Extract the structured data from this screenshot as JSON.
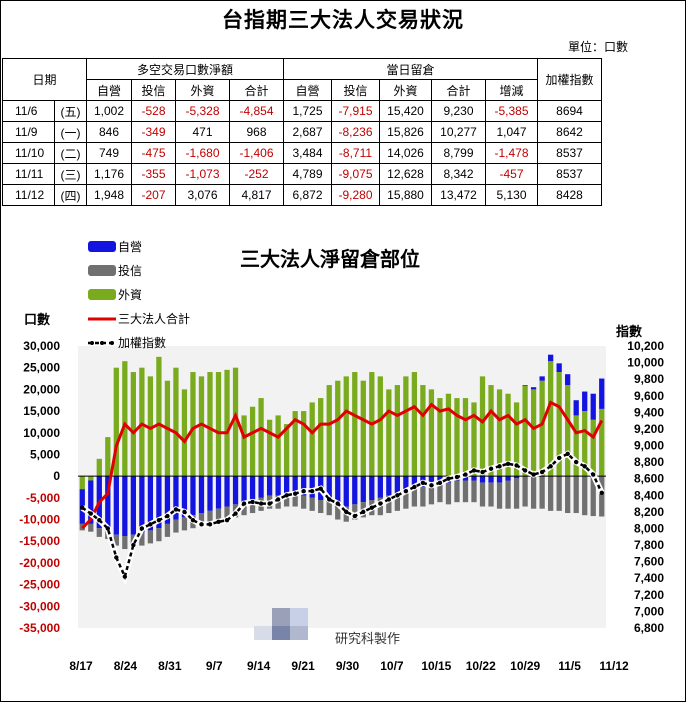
{
  "title": "台指期三大法人交易狀況",
  "unit": "單位：口數",
  "table": {
    "date_header": "日期",
    "group1": "多空交易口數淨額",
    "group2": "當日留倉",
    "last_header": "加權指數",
    "sub1": [
      "自營",
      "投信",
      "外資",
      "合計"
    ],
    "sub2": [
      "自營",
      "投信",
      "外資",
      "合計",
      "增減"
    ],
    "rows": [
      {
        "date": "11/6",
        "dow": "(五)",
        "c": [
          "1,002",
          "-528",
          "-5,328",
          "-4,854",
          "1,725",
          "-7,915",
          "15,420",
          "9,230",
          "-5,385",
          "8694"
        ]
      },
      {
        "date": "11/9",
        "dow": "(一)",
        "c": [
          "846",
          "-349",
          "471",
          "968",
          "2,687",
          "-8,236",
          "15,826",
          "10,277",
          "1,047",
          "8642"
        ]
      },
      {
        "date": "11/10",
        "dow": "(二)",
        "c": [
          "749",
          "-475",
          "-1,680",
          "-1,406",
          "3,484",
          "-8,711",
          "14,026",
          "8,799",
          "-1,478",
          "8537"
        ]
      },
      {
        "date": "11/11",
        "dow": "(三)",
        "c": [
          "1,176",
          "-355",
          "-1,073",
          "-252",
          "4,789",
          "-9,075",
          "12,628",
          "8,342",
          "-457",
          "8537"
        ]
      },
      {
        "date": "11/12",
        "dow": "(四)",
        "c": [
          "1,948",
          "-207",
          "3,076",
          "4,817",
          "6,872",
          "-9,280",
          "15,880",
          "13,472",
          "5,130",
          "8428"
        ]
      }
    ]
  },
  "watermark": "研究科製作",
  "colors": {
    "dealer": "#1414e0",
    "trust": "#707070",
    "foreign": "#7aab1f",
    "total": "#e00000",
    "index": "#000000",
    "neg_text": "#c00000"
  },
  "chart_data": {
    "type": "bar",
    "title": "三大法人淨留倉部位",
    "ylabel": "口數",
    "y2label": "指數",
    "ylim": [
      -35000,
      30000
    ],
    "y2lim": [
      6800,
      10200
    ],
    "yticks": [
      "30,000",
      "25,000",
      "20,000",
      "15,000",
      "10,000",
      "5,000",
      "0",
      "-5,000",
      "-10,000",
      "-15,000",
      "-20,000",
      "-25,000",
      "-30,000",
      "-35,000"
    ],
    "y2ticks": [
      "10,200",
      "10,000",
      "9,800",
      "9,600",
      "9,400",
      "9,200",
      "9,000",
      "8,800",
      "8,600",
      "8,400",
      "8,200",
      "8,000",
      "7,800",
      "7,600",
      "7,400",
      "7,200",
      "7,000",
      "6,800"
    ],
    "xticks": [
      "8/17",
      "8/24",
      "8/31",
      "9/7",
      "9/14",
      "9/21",
      "9/30",
      "10/7",
      "10/15",
      "10/22",
      "10/29",
      "11/5",
      "11/12"
    ],
    "legend": [
      "自營",
      "投信",
      "外資",
      "三大法人合計",
      "加權指數"
    ],
    "series": [
      {
        "name": "自營",
        "values": [
          -8000,
          -10000,
          -12000,
          -12000,
          -13500,
          -13800,
          -13500,
          -13000,
          -12500,
          -12000,
          -11000,
          -10000,
          -9500,
          -9000,
          -8500,
          -8000,
          -7500,
          -7000,
          -6500,
          -6000,
          -5500,
          -5000,
          -4500,
          -4500,
          -4000,
          -4000,
          -4500,
          -5000,
          -5500,
          -6000,
          -6500,
          -7000,
          -6500,
          -6000,
          -5500,
          -5000,
          -4500,
          -4000,
          -3500,
          -3000,
          -2500,
          -2000,
          -1500,
          -1500,
          -1000,
          -1000,
          -1000,
          -1500,
          -1500,
          -1500,
          -1000,
          -500,
          0,
          500,
          1000,
          1500,
          2000,
          2500,
          3500,
          4500,
          6000,
          7000
        ]
      },
      {
        "name": "投信",
        "values": [
          -1500,
          -1800,
          -2000,
          -2500,
          -2500,
          -3000,
          -3000,
          -3000,
          -3000,
          -3000,
          -3000,
          -3000,
          -3000,
          -3000,
          -3000,
          -3000,
          -3000,
          -3000,
          -3000,
          -3000,
          -3000,
          -3000,
          -3000,
          -3000,
          -3000,
          -3000,
          -3000,
          -3000,
          -3000,
          -3000,
          -3500,
          -3500,
          -3500,
          -3500,
          -3500,
          -4000,
          -4000,
          -4000,
          -4000,
          -4000,
          -4500,
          -4500,
          -4500,
          -5000,
          -5000,
          -5000,
          -5000,
          -5500,
          -5500,
          -6000,
          -6500,
          -7000,
          -7000,
          -7500,
          -7500,
          -8000,
          -8000,
          -8500,
          -8500,
          -9000,
          -9200,
          -9300
        ]
      },
      {
        "name": "外資",
        "values": [
          -3000,
          -1000,
          4000,
          9000,
          25000,
          26500,
          24000,
          25000,
          23000,
          27500,
          22000,
          25000,
          20000,
          24000,
          23000,
          24000,
          24000,
          24500,
          25000,
          14000,
          16000,
          18000,
          13000,
          14000,
          12000,
          15000,
          15000,
          17000,
          18000,
          21000,
          22000,
          23000,
          24000,
          22000,
          24000,
          23000,
          20000,
          21000,
          23000,
          24000,
          21000,
          20000,
          18000,
          19000,
          18000,
          18000,
          17000,
          23000,
          21000,
          20000,
          19000,
          17000,
          21000,
          20000,
          22000,
          26500,
          24000,
          21000,
          14000,
          15000,
          13000,
          15500
        ]
      },
      {
        "name": "三大法人合計",
        "values": [
          -12000,
          -10000,
          -6000,
          -4000,
          7000,
          12000,
          10000,
          12000,
          11000,
          12000,
          11000,
          10000,
          8000,
          11000,
          12000,
          11000,
          10000,
          10000,
          14000,
          9000,
          10000,
          11000,
          10000,
          9000,
          11000,
          13000,
          12000,
          10000,
          12000,
          12000,
          13000,
          15000,
          14000,
          13000,
          12000,
          13000,
          15000,
          14000,
          15000,
          16000,
          14000,
          16500,
          15000,
          15500,
          14000,
          13000,
          14000,
          12500,
          15000,
          13000,
          14000,
          12000,
          13000,
          11000,
          12000,
          17000,
          16000,
          13000,
          10000,
          10500,
          9000,
          12800
        ]
      },
      {
        "name": "加權指數",
        "values": [
          8250,
          8180,
          8100,
          8000,
          7650,
          7420,
          7800,
          8000,
          8050,
          8100,
          8150,
          8230,
          8200,
          8100,
          8050,
          8050,
          8080,
          8100,
          8180,
          8300,
          8320,
          8300,
          8300,
          8350,
          8400,
          8420,
          8450,
          8450,
          8480,
          8350,
          8300,
          8200,
          8150,
          8200,
          8250,
          8300,
          8350,
          8400,
          8450,
          8500,
          8550,
          8520,
          8550,
          8600,
          8620,
          8650,
          8700,
          8680,
          8720,
          8750,
          8780,
          8760,
          8700,
          8650,
          8680,
          8750,
          8850,
          8900,
          8800,
          8750,
          8650,
          8430
        ]
      }
    ]
  }
}
